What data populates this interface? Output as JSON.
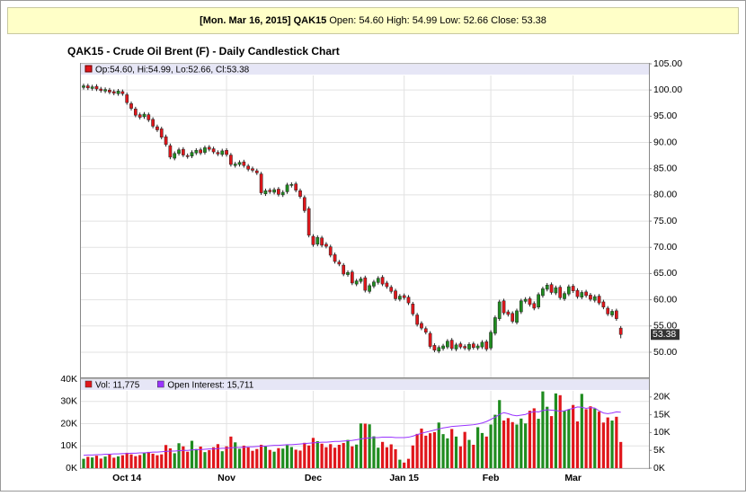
{
  "header": {
    "label": "[Mon. Mar 16, 2015] QAK15",
    "text": "Open: 54.60 High: 54.99 Low: 52.66 Close: 53.38"
  },
  "chart_data": [
    {
      "type": "candlestick",
      "title": "QAK15 - Crude Oil Brent (F) - Daily Candlestick Chart",
      "legend": "Op:54.60, Hi:54.99, Lo:52.66, Cl:53.38",
      "up_color": "#1f8c1f",
      "down_color": "#e0161b",
      "grid": true,
      "categories": [
        null,
        null,
        null,
        null,
        null,
        null,
        null,
        null,
        null,
        null,
        "Oct 14",
        null,
        null,
        null,
        null,
        null,
        null,
        null,
        null,
        null,
        null,
        null,
        null,
        null,
        null,
        null,
        null,
        null,
        null,
        null,
        null,
        null,
        null,
        "Nov",
        null,
        null,
        null,
        null,
        null,
        null,
        null,
        null,
        null,
        null,
        null,
        null,
        null,
        null,
        null,
        null,
        null,
        null,
        null,
        "Dec",
        null,
        null,
        null,
        null,
        null,
        null,
        null,
        null,
        null,
        null,
        null,
        null,
        null,
        null,
        null,
        null,
        null,
        null,
        null,
        null,
        "Jan 15",
        null,
        null,
        null,
        null,
        null,
        null,
        null,
        null,
        null,
        null,
        null,
        null,
        null,
        null,
        null,
        null,
        null,
        null,
        null,
        "Feb",
        null,
        null,
        null,
        null,
        null,
        null,
        null,
        null,
        null,
        null,
        null,
        null,
        null,
        null,
        null,
        null,
        null,
        null,
        "Mar",
        null,
        null,
        null,
        null,
        null,
        null,
        null,
        null,
        null,
        null,
        null
      ],
      "open": [
        100.5,
        100.8,
        100.3,
        100.7,
        100.2,
        99.8,
        100.0,
        99.7,
        99.3,
        99.7,
        99.1,
        97.4,
        96.4,
        95.3,
        94.9,
        95.3,
        94.4,
        93.0,
        92.6,
        91.1,
        89.4,
        87.0,
        87.9,
        88.7,
        87.5,
        87.4,
        88.0,
        88.6,
        88.1,
        89.1,
        88.8,
        88.1,
        87.7,
        88.5,
        87.6,
        85.6,
        85.8,
        86.3,
        85.5,
        85.0,
        84.6,
        84.0,
        80.2,
        80.9,
        80.5,
        81.1,
        80.0,
        80.6,
        81.8,
        82.1,
        80.8,
        79.5,
        77.4,
        72.1,
        70.6,
        71.8,
        70.6,
        70.1,
        68.6,
        67.2,
        66.6,
        64.8,
        65.3,
        63.0,
        63.5,
        64.2,
        61.6,
        62.6,
        63.3,
        64.3,
        63.2,
        62.4,
        61.7,
        60.1,
        60.8,
        60.5,
        59.2,
        57.1,
        55.5,
        54.5,
        53.6,
        51.3,
        50.2,
        50.7,
        51.0,
        52.3,
        50.6,
        51.6,
        51.1,
        50.6,
        51.6,
        50.8,
        51.0,
        52.0,
        50.8,
        53.6,
        56.4,
        59.8,
        57.7,
        57.4,
        55.7,
        57.7,
        59.7,
        60.2,
        59.3,
        58.6,
        60.8,
        62.0,
        62.9,
        61.3,
        62.4,
        60.2,
        61.1,
        62.6,
        61.8,
        60.5,
        61.5,
        60.9,
        59.9,
        60.7,
        59.6,
        58.4,
        57.1,
        57.9,
        54.6
      ],
      "high": [
        101.2,
        101.2,
        101.0,
        101.1,
        100.6,
        100.5,
        100.4,
        100.1,
        100.2,
        100.1,
        99.5,
        97.8,
        96.8,
        95.7,
        95.8,
        95.7,
        94.8,
        93.4,
        93.0,
        91.5,
        89.8,
        88.3,
        89.0,
        89.1,
        87.9,
        88.5,
        88.9,
        89.0,
        89.4,
        89.5,
        89.2,
        88.5,
        88.8,
        88.9,
        88.0,
        86.3,
        86.6,
        86.7,
        85.9,
        85.4,
        85.0,
        84.4,
        81.2,
        81.3,
        81.4,
        81.5,
        80.9,
        82.3,
        82.4,
        82.5,
        81.2,
        79.9,
        77.8,
        72.5,
        72.3,
        72.2,
        71.0,
        70.5,
        69.0,
        67.6,
        67.0,
        65.6,
        65.7,
        64.0,
        64.4,
        64.6,
        63.1,
        63.8,
        64.5,
        64.7,
        63.6,
        62.8,
        62.1,
        61.1,
        61.2,
        60.9,
        59.6,
        57.5,
        55.9,
        54.9,
        54.0,
        51.7,
        51.3,
        51.6,
        52.5,
        52.7,
        51.8,
        52.0,
        51.5,
        51.9,
        52.0,
        51.6,
        52.3,
        52.4,
        54.2,
        57.0,
        60.0,
        60.2,
        58.1,
        57.8,
        58.3,
        60.2,
        60.5,
        60.6,
        59.7,
        61.4,
        62.5,
        63.2,
        63.3,
        62.7,
        62.8,
        61.6,
        62.9,
        63.0,
        62.2,
        61.8,
        61.9,
        61.3,
        61.0,
        61.1,
        60.0,
        58.8,
        58.2,
        58.3,
        54.99
      ],
      "low": [
        100.1,
        100.0,
        99.9,
        99.8,
        99.5,
        99.4,
        99.2,
        99.0,
        98.9,
        98.9,
        97.2,
        96.1,
        94.8,
        94.4,
        94.5,
        93.9,
        92.7,
        92.0,
        90.6,
        89.2,
        86.8,
        86.6,
        87.5,
        87.2,
        86.9,
        87.0,
        87.6,
        87.6,
        87.7,
        88.3,
        87.8,
        87.4,
        87.3,
        87.3,
        85.4,
        85.2,
        85.4,
        85.2,
        84.5,
        84.3,
        83.8,
        80.0,
        79.8,
        80.2,
        80.1,
        79.7,
        79.6,
        80.2,
        81.4,
        80.5,
        79.3,
        76.6,
        71.9,
        70.1,
        70.2,
        70.0,
        69.8,
        68.1,
        66.9,
        66.4,
        64.5,
        64.4,
        62.8,
        62.6,
        63.1,
        61.4,
        61.2,
        62.2,
        62.9,
        62.6,
        62.1,
        61.2,
        59.8,
        59.7,
        60.0,
        59.0,
        56.9,
        54.9,
        54.2,
        53.4,
        50.7,
        50.0,
        49.8,
        50.3,
        50.6,
        50.3,
        50.2,
        50.6,
        50.4,
        50.2,
        50.5,
        50.4,
        50.6,
        50.2,
        50.4,
        53.2,
        56.0,
        57.1,
        56.8,
        55.5,
        55.3,
        57.3,
        59.3,
        58.7,
        58.0,
        58.2,
        60.4,
        61.6,
        61.0,
        60.9,
        60.0,
        59.8,
        60.7,
        61.3,
        60.2,
        60.1,
        60.4,
        59.7,
        59.5,
        59.0,
        58.2,
        56.9,
        56.7,
        56.0,
        52.66
      ],
      "close": [
        100.8,
        100.4,
        100.6,
        100.2,
        99.9,
        100.1,
        99.6,
        99.4,
        99.8,
        99.3,
        97.6,
        96.5,
        95.2,
        94.8,
        95.4,
        94.3,
        93.1,
        92.4,
        91.0,
        89.6,
        87.2,
        87.9,
        88.6,
        87.6,
        87.3,
        88.1,
        88.5,
        88.0,
        89.0,
        88.7,
        88.2,
        87.8,
        88.4,
        87.7,
        85.8,
        85.9,
        86.2,
        85.6,
        84.9,
        84.7,
        84.2,
        80.4,
        80.8,
        80.6,
        81.0,
        80.1,
        80.5,
        81.9,
        82.0,
        80.9,
        79.7,
        77.0,
        72.3,
        70.5,
        71.9,
        70.4,
        70.2,
        68.5,
        67.3,
        66.8,
        64.9,
        65.2,
        63.2,
        63.6,
        64.0,
        61.8,
        62.7,
        63.4,
        64.1,
        63.0,
        62.5,
        61.6,
        60.2,
        60.7,
        60.4,
        59.4,
        57.3,
        55.3,
        54.6,
        53.8,
        51.1,
        50.4,
        50.9,
        51.2,
        52.1,
        50.7,
        51.4,
        51.0,
        50.8,
        51.5,
        50.9,
        51.2,
        51.9,
        50.6,
        53.8,
        56.6,
        59.6,
        57.5,
        57.2,
        55.9,
        57.9,
        59.8,
        60.1,
        59.1,
        58.4,
        61.0,
        62.1,
        62.8,
        61.4,
        62.3,
        60.4,
        61.2,
        62.5,
        61.7,
        60.6,
        61.4,
        60.8,
        60.1,
        60.6,
        59.4,
        58.6,
        57.3,
        57.8,
        56.4,
        53.38
      ],
      "ylim": [
        45.2,
        105
      ],
      "yticks": [
        {
          "value": 50,
          "label": "50.00"
        },
        {
          "value": 55,
          "label": "55.00"
        },
        {
          "value": 60,
          "label": "60.00"
        },
        {
          "value": 65,
          "label": "65.00"
        },
        {
          "value": 70,
          "label": "70.00"
        },
        {
          "value": 75,
          "label": "75.00"
        },
        {
          "value": 80,
          "label": "80.00"
        },
        {
          "value": 85,
          "label": "85.00"
        },
        {
          "value": 90,
          "label": "90.00"
        },
        {
          "value": 95,
          "label": "95.00"
        },
        {
          "value": 100,
          "label": "100.00"
        },
        {
          "value": 105,
          "label": "105.00"
        }
      ]
    },
    {
      "type": "volume",
      "grid": true,
      "series": [
        {
          "name": "Vol: 11,775",
          "color": "#e0161b",
          "values": [
            4200,
            5100,
            4800,
            5600,
            4300,
            5200,
            6100,
            4700,
            5300,
            5800,
            6900,
            6200,
            5400,
            5900,
            6800,
            7300,
            6500,
            5800,
            6200,
            10400,
            8900,
            6700,
            11200,
            9800,
            7400,
            12300,
            8600,
            9700,
            7200,
            8100,
            9400,
            10800,
            7600,
            9800,
            14200,
            11600,
            8700,
            10100,
            9300,
            7800,
            8600,
            10500,
            9700,
            8200,
            7400,
            9000,
            8800,
            10300,
            9500,
            8300,
            7900,
            11400,
            10200,
            13600,
            12100,
            11000,
            9400,
            10800,
            9200,
            10500,
            11300,
            12700,
            9800,
            10600,
            20100,
            20000,
            19700,
            14300,
            9200,
            11800,
            9400,
            10700,
            8500,
            3800,
            2500,
            4200,
            10200,
            15400,
            17800,
            14600,
            15700,
            16200,
            20500,
            15300,
            13400,
            17600,
            14200,
            9800,
            16300,
            12700,
            10500,
            18400,
            15800,
            14200,
            19600,
            24000,
            30600,
            21400,
            22500,
            20700,
            19600,
            22300,
            20100,
            25800,
            26900,
            22200,
            34500,
            27600,
            23400,
            33600,
            32800,
            25700,
            26400,
            28400,
            21000,
            33400,
            26500,
            27800,
            26800,
            25400,
            20500,
            22800,
            21400,
            23100,
            11775
          ]
        },
        {
          "name": "Open Interest: 15,711",
          "color": "#9933ff",
          "axis": "y2",
          "values": [
            3600,
            3700,
            3700,
            3800,
            3800,
            3900,
            3900,
            4000,
            4000,
            4100,
            4100,
            4200,
            4200,
            4300,
            4300,
            4400,
            4500,
            4500,
            4600,
            4700,
            4800,
            4800,
            4900,
            5000,
            5000,
            5100,
            5200,
            5200,
            5300,
            5400,
            5400,
            5500,
            5600,
            5600,
            5700,
            5800,
            5800,
            5900,
            6000,
            6000,
            6100,
            6200,
            6200,
            6300,
            6400,
            6400,
            6500,
            6600,
            6600,
            6700,
            6800,
            6900,
            7000,
            7100,
            7200,
            7300,
            7300,
            7400,
            7500,
            7500,
            7600,
            7700,
            7800,
            8000,
            8200,
            8400,
            8500,
            8600,
            8600,
            8700,
            8700,
            8700,
            8600,
            8600,
            8600,
            8700,
            9000,
            9400,
            9800,
            10100,
            10400,
            10700,
            11000,
            11300,
            11500,
            11700,
            11800,
            11900,
            12000,
            12100,
            12200,
            12400,
            12700,
            13100,
            13700,
            14300,
            15100,
            15600,
            15300,
            14900,
            14700,
            14900,
            15100,
            15600,
            15900,
            15800,
            16200,
            16400,
            16300,
            16200,
            16000,
            16100,
            16500,
            16800,
            17200,
            17100,
            16800,
            17000,
            16900,
            16100,
            15500,
            15300,
            15500,
            15800,
            15711
          ]
        }
      ],
      "ylim": [
        0,
        40000
      ],
      "yticks": [
        {
          "value": 0,
          "label": "0K"
        },
        {
          "value": 10000,
          "label": "10K"
        },
        {
          "value": 20000,
          "label": "20K"
        },
        {
          "value": 30000,
          "label": "30K"
        },
        {
          "value": 40000,
          "label": "40K"
        }
      ],
      "y2lim": [
        0,
        25000
      ],
      "y2ticks": [
        {
          "value": 0,
          "label": "0K"
        },
        {
          "value": 5000,
          "label": "5K"
        },
        {
          "value": 10000,
          "label": "10K"
        },
        {
          "value": 15000,
          "label": "15K"
        },
        {
          "value": 20000,
          "label": "20K"
        }
      ]
    }
  ]
}
